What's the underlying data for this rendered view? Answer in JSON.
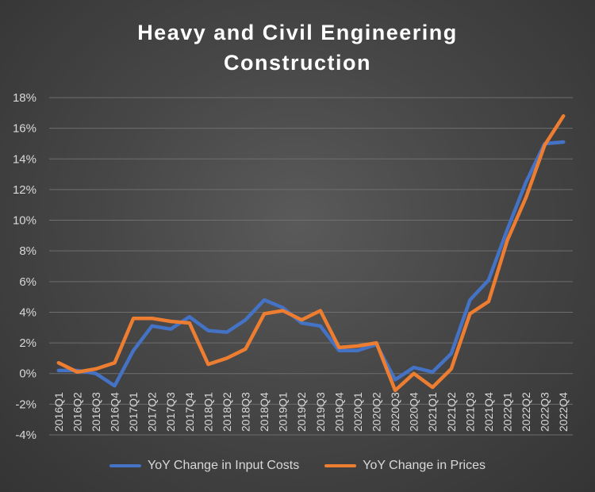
{
  "chart_data": {
    "type": "line",
    "title_lines": [
      "Heavy and Civil Engineering",
      "Construction"
    ],
    "categories": [
      "2016Q1",
      "2016Q2",
      "2016Q3",
      "2016Q4",
      "2017Q1",
      "2017Q2",
      "2017Q3",
      "2017Q4",
      "2018Q1",
      "2018Q2",
      "2018Q3",
      "2018Q4",
      "2019Q1",
      "2019Q2",
      "2019Q3",
      "2019Q4",
      "2020Q1",
      "2020Q2",
      "2020Q3",
      "2020Q4",
      "2021Q1",
      "2021Q2",
      "2021Q3",
      "2021Q4",
      "2022Q1",
      "2022Q2",
      "2022Q3",
      "2022Q4"
    ],
    "y_ticks": [
      -4,
      -2,
      0,
      2,
      4,
      6,
      8,
      10,
      12,
      14,
      16,
      18
    ],
    "y_tick_labels": [
      "-4%",
      "-2%",
      "0%",
      "2%",
      "4%",
      "6%",
      "8%",
      "10%",
      "12%",
      "14%",
      "16%",
      "18%"
    ],
    "ylim": [
      -4,
      18
    ],
    "grid": true,
    "legend_position": "bottom",
    "xlabel": "",
    "ylabel": "",
    "series": [
      {
        "name": "YoY Change in Input Costs",
        "color": "#4472C4",
        "values": [
          0.2,
          0.2,
          0.0,
          -0.8,
          1.5,
          3.1,
          2.9,
          3.7,
          2.8,
          2.7,
          3.5,
          4.8,
          4.3,
          3.3,
          3.1,
          1.5,
          1.5,
          1.9,
          -0.4,
          0.4,
          0.1,
          1.3,
          4.8,
          6.1,
          9.4,
          12.5,
          15.0,
          15.1
        ]
      },
      {
        "name": "YoY Change in Prices",
        "color": "#ED7D31",
        "values": [
          0.7,
          0.1,
          0.3,
          0.7,
          3.6,
          3.6,
          3.4,
          3.3,
          0.6,
          1.0,
          1.6,
          3.9,
          4.1,
          3.5,
          4.1,
          1.7,
          1.8,
          2.0,
          -1.1,
          0.0,
          -0.9,
          0.3,
          3.9,
          4.7,
          8.7,
          11.5,
          14.9,
          16.8
        ]
      }
    ]
  }
}
